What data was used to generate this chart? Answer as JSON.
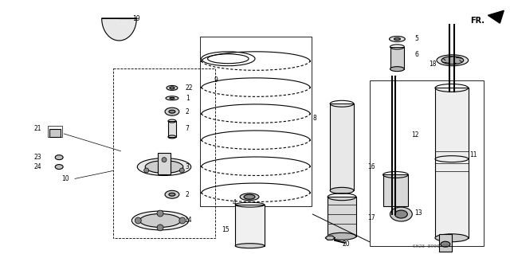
{
  "title": "",
  "bg_color": "#ffffff",
  "line_color": "#000000",
  "diagram_code": "SH23-8900 1D",
  "direction_label": "FR.",
  "figsize": [
    6.4,
    3.19
  ],
  "dpi": 100
}
